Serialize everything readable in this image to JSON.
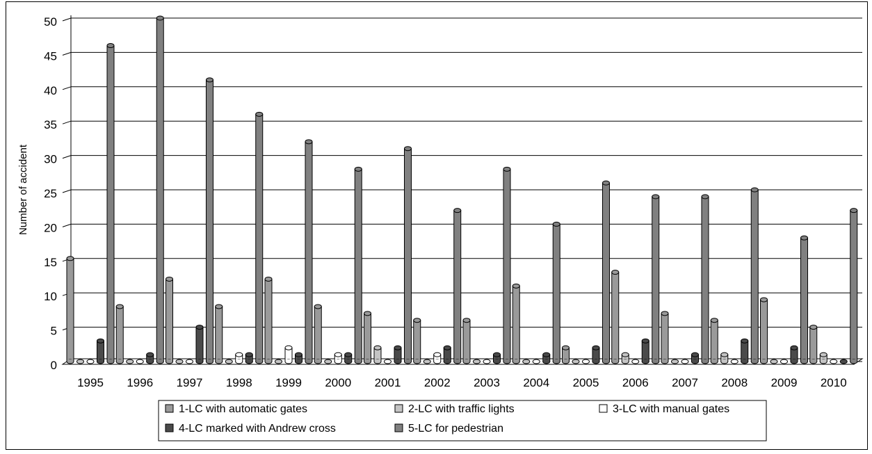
{
  "chart_data": {
    "type": "bar",
    "title": "",
    "xlabel": "",
    "ylabel": "Number of accident",
    "ylim": [
      0,
      50
    ],
    "yticks": [
      0,
      5,
      10,
      15,
      20,
      25,
      30,
      35,
      40,
      45,
      50
    ],
    "grid": true,
    "legend_position": "bottom",
    "categories": [
      "1995",
      "1996",
      "1997",
      "1998",
      "1999",
      "2000",
      "2001",
      "2002",
      "2003",
      "2004",
      "2005",
      "2006",
      "2007",
      "2008",
      "2009",
      "2010"
    ],
    "series": [
      {
        "name": "1-LC with automatic gates",
        "color": "#9a9a9a",
        "values": [
          15,
          8,
          12,
          8,
          12,
          8,
          7,
          6,
          6,
          11,
          2,
          13,
          7,
          6,
          9,
          5
        ]
      },
      {
        "name": "2-LC with traffic lights",
        "color": "#c4c4c4",
        "values": [
          0,
          0,
          0,
          0,
          0,
          0,
          2,
          0,
          0,
          0,
          0,
          1,
          0,
          1,
          0,
          1
        ]
      },
      {
        "name": "3-LC with manual gates",
        "color": "#ffffff",
        "values": [
          0,
          0,
          0,
          1,
          2,
          1,
          0,
          1,
          0,
          0,
          0,
          0,
          0,
          0,
          0,
          0
        ]
      },
      {
        "name": "4-LC marked with Andrew cross",
        "color": "#4a4a4a",
        "values": [
          3,
          1,
          5,
          1,
          1,
          1,
          2,
          2,
          1,
          1,
          2,
          3,
          1,
          3,
          2,
          0
        ]
      },
      {
        "name": "5-LC for pedestrian",
        "color": "#808080",
        "values": [
          46,
          50,
          41,
          36,
          32,
          28,
          31,
          22,
          28,
          20,
          26,
          24,
          24,
          25,
          18,
          22
        ]
      }
    ]
  }
}
